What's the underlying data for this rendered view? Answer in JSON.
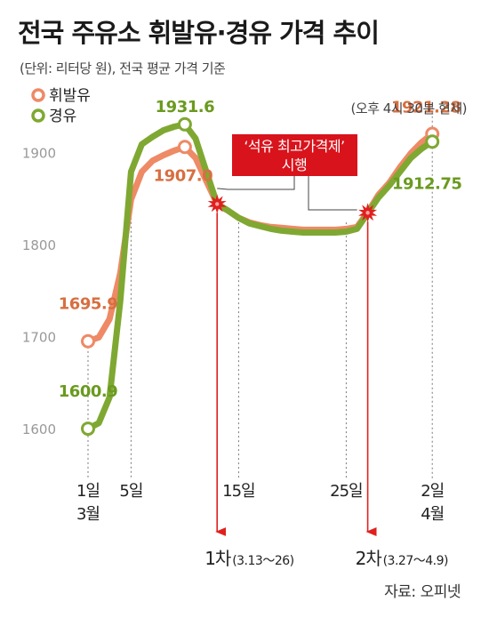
{
  "title": "전국 주유소 휘발유·경유 가격 추이",
  "subtitle": "(단위: 리터당 원), 전국 평균 가격 기준",
  "source": "자료: 오피넷",
  "chart_data": {
    "type": "line",
    "title": "전국 주유소 휘발유·경유 가격 추이",
    "unit": "(단위: 리터당 원)",
    "ylim": [
      1560,
      1960
    ],
    "yticks": [
      1600,
      1700,
      1800,
      1900
    ],
    "x_ticks": [
      {
        "day": 1,
        "lines": [
          "1일",
          "3월"
        ]
      },
      {
        "day": 5,
        "lines": [
          "5일"
        ]
      },
      {
        "day": 15,
        "lines": [
          "15일"
        ]
      },
      {
        "day": 25,
        "lines": [
          "25일"
        ]
      },
      {
        "day": 33,
        "lines": [
          "2일",
          "4월"
        ]
      }
    ],
    "series": [
      {
        "name": "휘발유",
        "color": "#ee8a66",
        "x": [
          1,
          2,
          3,
          4,
          5,
          6,
          7,
          8,
          9,
          10,
          11,
          12,
          13,
          14,
          15,
          16,
          17,
          18,
          19,
          20,
          21,
          22,
          23,
          24,
          25,
          26,
          27,
          28,
          29,
          30,
          31,
          32,
          33
        ],
        "values": [
          1695.9,
          1700,
          1720,
          1770,
          1850,
          1880,
          1892,
          1898,
          1903,
          1907.0,
          1895,
          1870,
          1845,
          1838,
          1830,
          1825,
          1822,
          1820,
          1819,
          1818,
          1817,
          1817,
          1817,
          1817,
          1818,
          1820,
          1836,
          1855,
          1868,
          1885,
          1900,
          1912,
          1921.28
        ]
      },
      {
        "name": "경유",
        "color": "#7fa832",
        "x": [
          1,
          2,
          3,
          4,
          5,
          6,
          7,
          8,
          9,
          10,
          11,
          12,
          13,
          14,
          15,
          16,
          17,
          18,
          19,
          20,
          21,
          22,
          23,
          24,
          25,
          26,
          27,
          28,
          29,
          30,
          31,
          32,
          33
        ],
        "values": [
          1600.9,
          1607,
          1635,
          1740,
          1880,
          1910,
          1918,
          1925,
          1929,
          1931.6,
          1916,
          1880,
          1845,
          1838,
          1830,
          1824,
          1821,
          1818,
          1816,
          1815,
          1814,
          1814,
          1814,
          1814,
          1815,
          1818,
          1835,
          1852,
          1865,
          1880,
          1895,
          1905,
          1912.75
        ]
      }
    ],
    "labels": [
      {
        "series": "휘발유",
        "day": 1,
        "text": "1695.9"
      },
      {
        "series": "경유",
        "day": 1,
        "text": "1600.9"
      },
      {
        "series": "경유",
        "day": 10,
        "text": "1931.6"
      },
      {
        "series": "휘발유",
        "day": 10,
        "text": "1907.0"
      },
      {
        "series": "휘발유",
        "day": 33,
        "text": "1921.28"
      },
      {
        "series": "경유",
        "day": 33,
        "text": "1912.75"
      }
    ],
    "latest_note": "(오후 4시 30분 현재)",
    "callout": [
      "‘석유 최고가격제’",
      "시행"
    ],
    "phases": [
      {
        "main": "1차",
        "sub": "(3.13～26)",
        "day": 13
      },
      {
        "main": "2차",
        "sub": "(3.27～4.9)",
        "day": 27
      }
    ]
  }
}
